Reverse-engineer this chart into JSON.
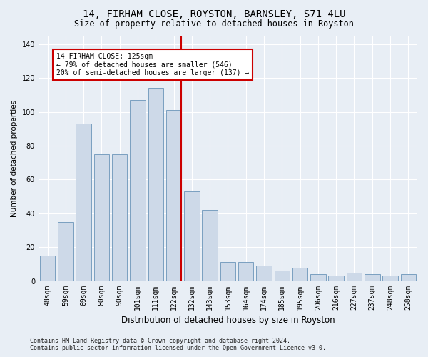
{
  "title": "14, FIRHAM CLOSE, ROYSTON, BARNSLEY, S71 4LU",
  "subtitle": "Size of property relative to detached houses in Royston",
  "xlabel": "Distribution of detached houses by size in Royston",
  "ylabel": "Number of detached properties",
  "categories": [
    "48sqm",
    "59sqm",
    "69sqm",
    "80sqm",
    "90sqm",
    "101sqm",
    "111sqm",
    "122sqm",
    "132sqm",
    "143sqm",
    "153sqm",
    "164sqm",
    "174sqm",
    "185sqm",
    "195sqm",
    "206sqm",
    "216sqm",
    "227sqm",
    "237sqm",
    "248sqm",
    "258sqm"
  ],
  "values": [
    15,
    35,
    93,
    75,
    75,
    107,
    114,
    101,
    53,
    42,
    11,
    11,
    9,
    6,
    8,
    4,
    3,
    5,
    4,
    3,
    4
  ],
  "bar_color": "#cdd9e8",
  "bar_edge_color": "#7a9fc0",
  "vline_color": "#cc0000",
  "annotation_text": "14 FIRHAM CLOSE: 125sqm\n← 79% of detached houses are smaller (546)\n20% of semi-detached houses are larger (137) →",
  "annotation_box_color": "#ffffff",
  "annotation_box_edge": "#cc0000",
  "ylim": [
    0,
    145
  ],
  "yticks": [
    0,
    20,
    40,
    60,
    80,
    100,
    120,
    140
  ],
  "background_color": "#e8eef5",
  "plot_background": "#e8eef5",
  "footer": "Contains HM Land Registry data © Crown copyright and database right 2024.\nContains public sector information licensed under the Open Government Licence v3.0.",
  "title_fontsize": 10,
  "subtitle_fontsize": 8.5,
  "xlabel_fontsize": 8.5,
  "ylabel_fontsize": 7.5,
  "tick_fontsize": 7,
  "footer_fontsize": 6
}
